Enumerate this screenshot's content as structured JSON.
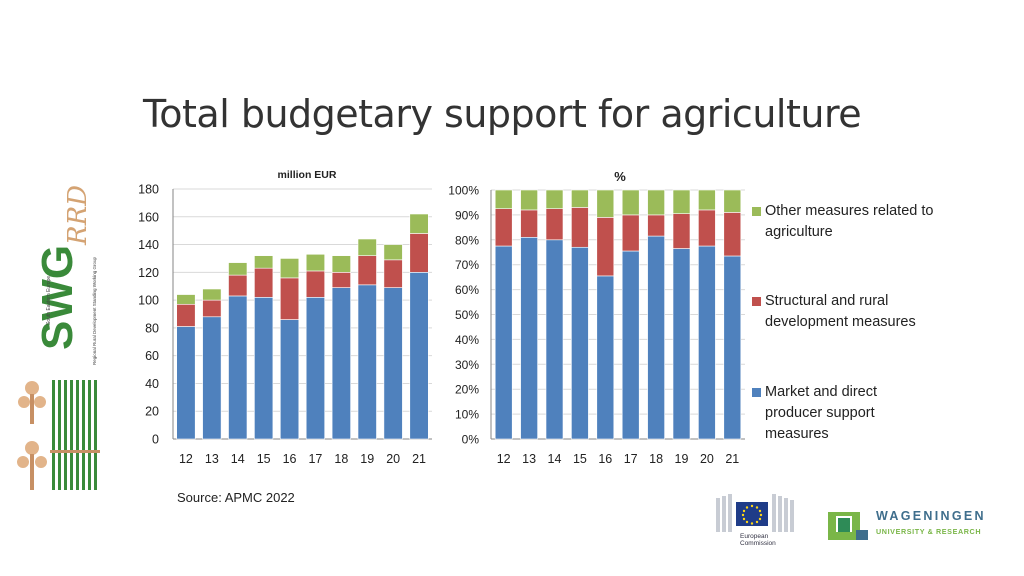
{
  "slide": {
    "title": "Total budgetary support for agriculture",
    "source": "Source: APMC 2022"
  },
  "colors": {
    "market": "#4f81bd",
    "structural": "#c0504d",
    "other": "#9bbb59",
    "axis": "#868686",
    "grid": "#d9d9d9"
  },
  "legend": [
    {
      "key": "other",
      "label": "Other measures related to agriculture"
    },
    {
      "key": "structural",
      "label": "Structural and rural development measures"
    },
    {
      "key": "market",
      "label": "Market and direct producer support measures"
    }
  ],
  "chart_data": [
    {
      "type": "bar",
      "stacked": true,
      "title": "million EUR",
      "categories": [
        "12",
        "13",
        "14",
        "15",
        "16",
        "17",
        "18",
        "19",
        "20",
        "21"
      ],
      "ylim": [
        0,
        180
      ],
      "yticks": [
        0,
        20,
        40,
        60,
        80,
        100,
        120,
        140,
        160,
        180
      ],
      "ytick_labels": [
        "0",
        "20",
        "40",
        "60",
        "80",
        "100",
        "120",
        "140",
        "160",
        "180"
      ],
      "grid": true,
      "series": [
        {
          "name": "Market and direct producer support measures",
          "key": "market",
          "values": [
            81,
            88,
            103,
            102,
            86,
            102,
            109,
            111,
            109,
            120
          ]
        },
        {
          "name": "Structural and rural development measures",
          "key": "structural",
          "values": [
            16,
            12,
            15,
            21,
            30,
            19,
            11,
            21,
            20,
            28
          ]
        },
        {
          "name": "Other measures related to agriculture",
          "key": "other",
          "values": [
            7,
            8,
            9,
            9,
            14,
            12,
            12,
            12,
            11,
            14
          ]
        }
      ]
    },
    {
      "type": "bar",
      "stacked": true,
      "title": "%",
      "categories": [
        "12",
        "13",
        "14",
        "15",
        "16",
        "17",
        "18",
        "19",
        "20",
        "21"
      ],
      "ylim": [
        0,
        100
      ],
      "yticks": [
        0,
        10,
        20,
        30,
        40,
        50,
        60,
        70,
        80,
        90,
        100
      ],
      "ytick_labels": [
        "0%",
        "10%",
        "20%",
        "30%",
        "40%",
        "50%",
        "60%",
        "70%",
        "80%",
        "90%",
        "100%"
      ],
      "grid": true,
      "series": [
        {
          "name": "Market and direct producer support measures",
          "key": "market",
          "values": [
            77.5,
            81,
            80,
            77,
            65.5,
            75.5,
            81.5,
            76.5,
            77.5,
            73.5
          ]
        },
        {
          "name": "Structural and rural development measures",
          "key": "structural",
          "values": [
            15,
            11,
            12.5,
            16,
            23.5,
            14.5,
            8.5,
            14,
            14.5,
            17.5
          ]
        },
        {
          "name": "Other measures related to agriculture",
          "key": "other",
          "values": [
            7.5,
            8,
            7.5,
            7,
            11,
            10,
            10,
            9.5,
            8,
            9
          ]
        }
      ]
    }
  ],
  "logos": {
    "swg_main": "SWG",
    "swg_script": "RRD",
    "swg_sub1": "South Eastern Europe",
    "swg_sub2": "Regional Rural Development Standing Working Group",
    "ec_line1": "European",
    "ec_line2": "Commission",
    "wur_line1": "WAGENINGEN",
    "wur_line2": "UNIVERSITY & RESEARCH"
  }
}
